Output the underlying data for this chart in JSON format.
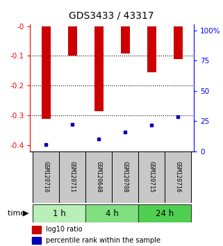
{
  "title": "GDS3433 / 43317",
  "samples": [
    "GSM120710",
    "GSM120711",
    "GSM120648",
    "GSM120708",
    "GSM120715",
    "GSM120716"
  ],
  "log10_ratio": [
    -0.31,
    -0.1,
    -0.285,
    -0.092,
    -0.155,
    -0.11
  ],
  "percentile_rank_y": [
    -0.398,
    -0.33,
    -0.378,
    -0.355,
    -0.333,
    -0.305
  ],
  "time_groups": [
    {
      "label": "1 h",
      "indices": [
        0,
        1
      ],
      "color": "#b8f0b8"
    },
    {
      "label": "4 h",
      "indices": [
        2,
        3
      ],
      "color": "#80e080"
    },
    {
      "label": "24 h",
      "indices": [
        4,
        5
      ],
      "color": "#50d050"
    }
  ],
  "ylim_left": [
    -0.42,
    0.005
  ],
  "ylim_right": [
    0,
    105
  ],
  "left_yticks": [
    0,
    -0.1,
    -0.2,
    -0.3,
    -0.4
  ],
  "right_yticks": [
    0,
    25,
    50,
    75,
    100
  ],
  "bar_color": "#cc0000",
  "blue_color": "#0000bb",
  "bar_width": 0.35,
  "label_bg": "#c8c8c8",
  "background_color": "#ffffff"
}
